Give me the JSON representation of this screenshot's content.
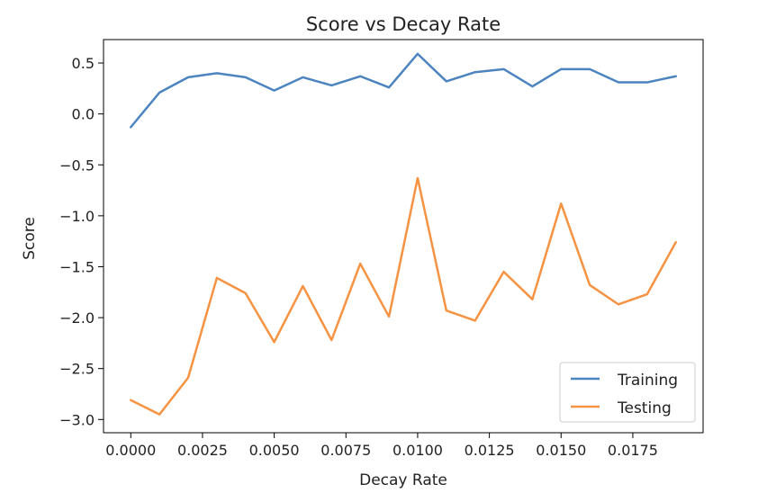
{
  "chart_data": {
    "type": "line",
    "title": "Score vs Decay Rate",
    "xlabel": "Decay Rate",
    "ylabel": "Score",
    "xlim": [
      -0.00095,
      0.01995
    ],
    "ylim": [
      -3.13,
      0.73
    ],
    "x_ticks": [
      0.0,
      0.0025,
      0.005,
      0.0075,
      0.01,
      0.0125,
      0.015,
      0.0175
    ],
    "x_tick_labels": [
      "0.0000",
      "0.0025",
      "0.0050",
      "0.0075",
      "0.0100",
      "0.0125",
      "0.0150",
      "0.0175"
    ],
    "y_ticks": [
      0.5,
      0.0,
      -0.5,
      -1.0,
      -1.5,
      -2.0,
      -2.5,
      -3.0
    ],
    "y_tick_labels": [
      "0.5",
      "0.0",
      "−0.5",
      "−1.0",
      "−1.5",
      "−2.0",
      "−2.5",
      "−3.0"
    ],
    "x": [
      0.0,
      0.001,
      0.002,
      0.003,
      0.004,
      0.005,
      0.006,
      0.007,
      0.008,
      0.009,
      0.01,
      0.011,
      0.012,
      0.013,
      0.014,
      0.015,
      0.016,
      0.017,
      0.018,
      0.019
    ],
    "series": [
      {
        "name": "Training",
        "color": "#4c84c0",
        "values": [
          -0.13,
          0.21,
          0.36,
          0.4,
          0.36,
          0.23,
          0.36,
          0.28,
          0.37,
          0.26,
          0.59,
          0.32,
          0.41,
          0.44,
          0.27,
          0.44,
          0.44,
          0.31,
          0.31,
          0.37
        ]
      },
      {
        "name": "Testing",
        "color": "#f59342",
        "values": [
          -2.81,
          -2.95,
          -2.59,
          -1.61,
          -1.76,
          -2.24,
          -1.69,
          -2.22,
          -1.47,
          -1.99,
          -0.63,
          -1.93,
          -2.03,
          -1.55,
          -1.82,
          -0.88,
          -1.68,
          -1.87,
          -1.77,
          -1.26
        ]
      }
    ],
    "legend_position": "lower-right",
    "grid": false
  }
}
